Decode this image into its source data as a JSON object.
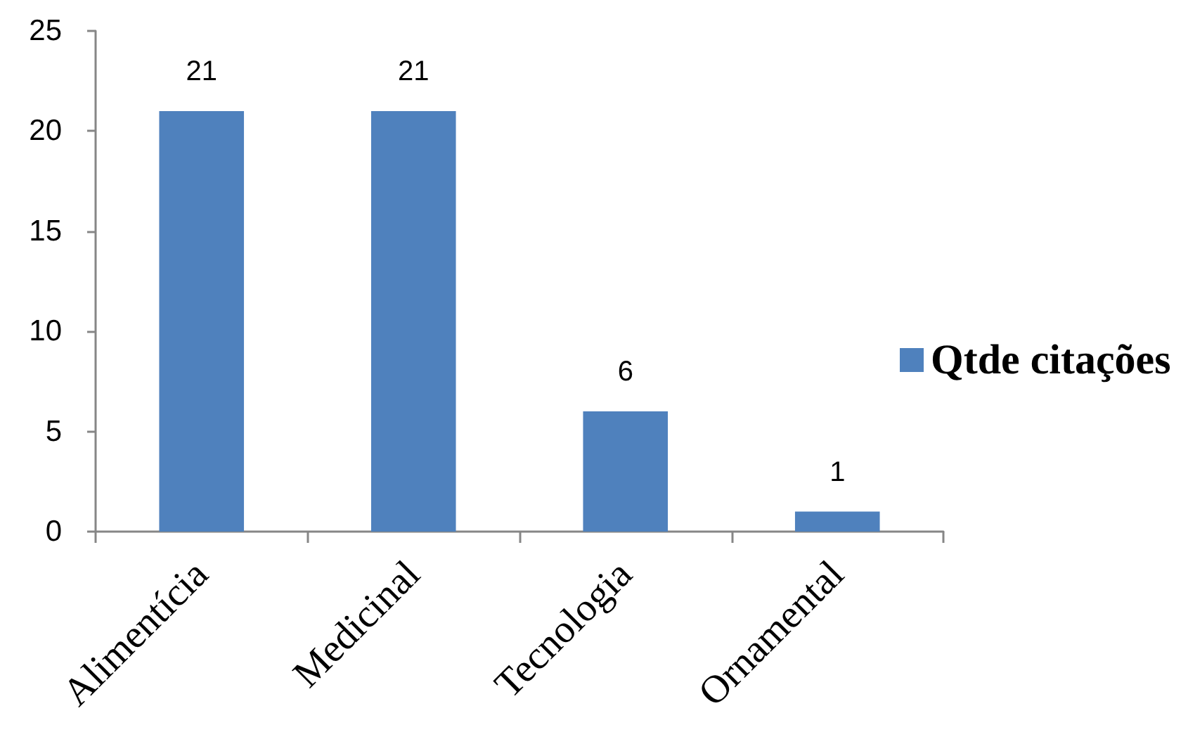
{
  "chart_data": {
    "type": "bar",
    "categories": [
      "Alimentícia",
      "Medicinal",
      "Tecnologia",
      "Ornamental"
    ],
    "series": [
      {
        "name": "Qtde citações",
        "color": "#4f81bd",
        "values": [
          21,
          21,
          6,
          1
        ]
      }
    ],
    "ylim": [
      0,
      25
    ],
    "yticks": [
      0,
      5,
      10,
      15,
      20,
      25
    ],
    "data_labels": true,
    "legend": "right",
    "grid": false
  }
}
